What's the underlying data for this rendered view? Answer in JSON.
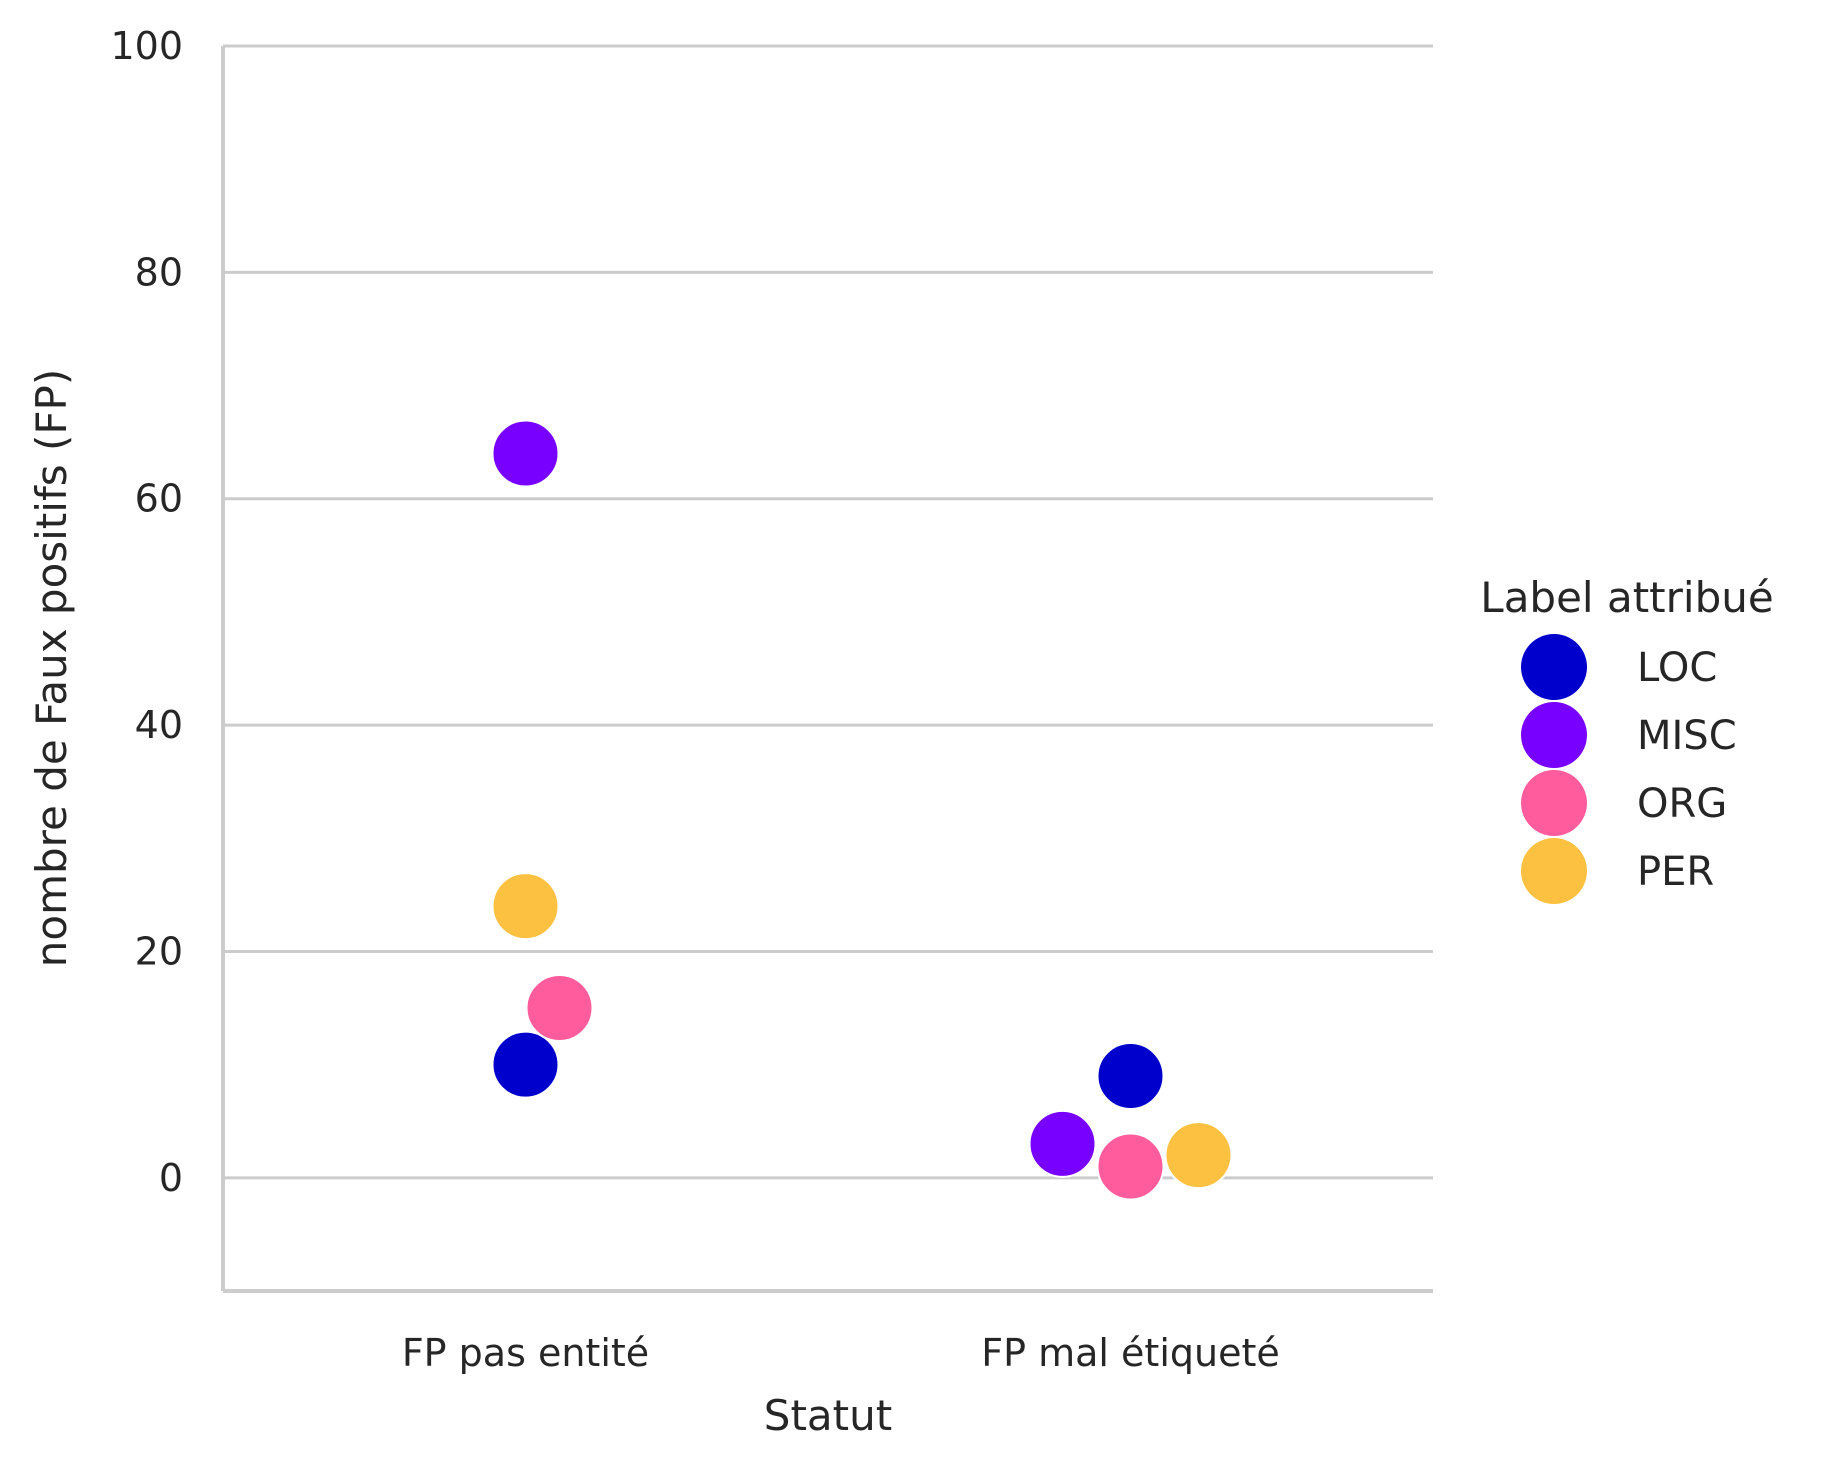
{
  "chart_data": {
    "type": "scatter",
    "title": "",
    "xlabel": "Statut",
    "ylabel": "nombre de Faux positifs (FP)",
    "categories": [
      "FP pas entité",
      "FP mal étiqueté"
    ],
    "ylim": [
      -10,
      100
    ],
    "yticks": [
      0,
      20,
      40,
      60,
      80,
      100
    ],
    "grid": "horizontal",
    "legend": {
      "title": "Label attribué",
      "placement": "right",
      "entries": [
        "LOC",
        "MISC",
        "ORG",
        "PER"
      ]
    },
    "colors": {
      "LOC": "#0000cc",
      "MISC": "#7700ff",
      "ORG": "#ff5c9d",
      "PER": "#fdc141"
    },
    "series": [
      {
        "name": "LOC",
        "values": [
          10,
          9
        ]
      },
      {
        "name": "MISC",
        "values": [
          64,
          3
        ]
      },
      {
        "name": "ORG",
        "values": [
          15,
          1
        ]
      },
      {
        "name": "PER",
        "values": [
          24,
          2
        ]
      }
    ]
  }
}
